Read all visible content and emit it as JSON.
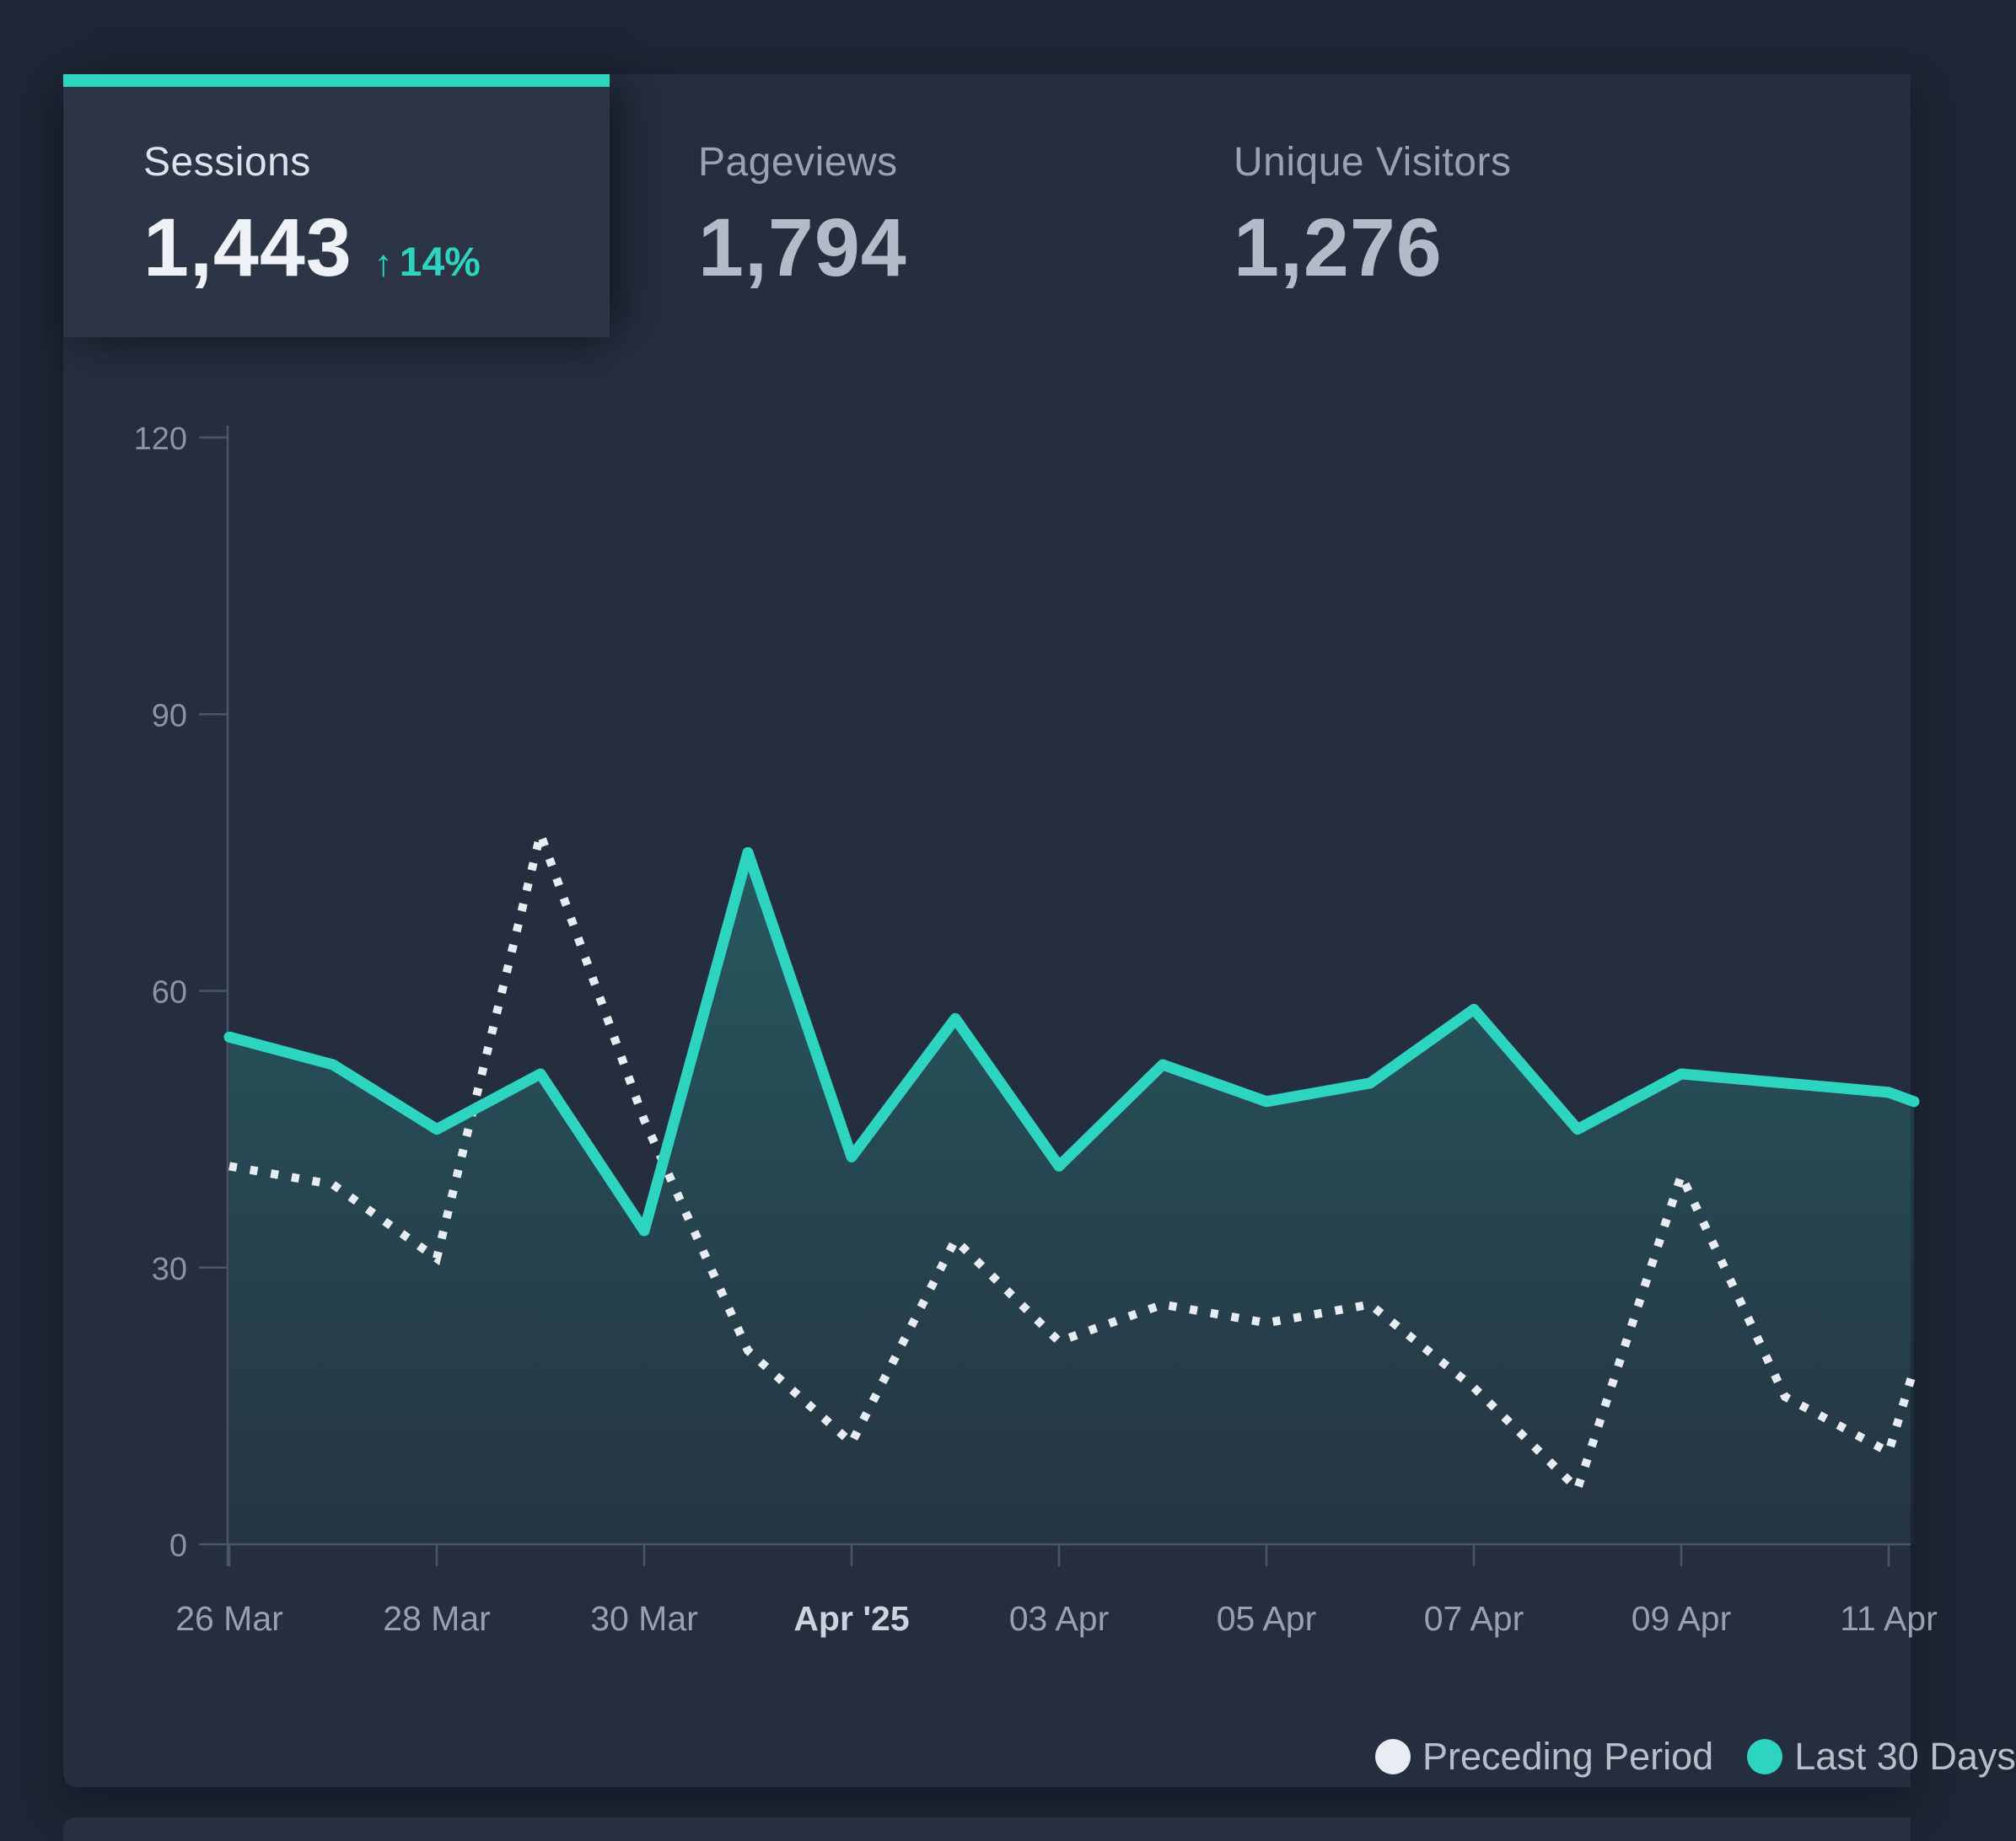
{
  "card": {
    "tabs": [
      {
        "id": "sessions",
        "label": "Sessions",
        "value": "1,443",
        "delta_arrow": "↑",
        "delta": "14%",
        "selected": true
      },
      {
        "id": "pageviews",
        "label": "Pageviews",
        "value": "1,794",
        "selected": false
      },
      {
        "id": "unique-visitors",
        "label": "Unique Visitors",
        "value": "1,276",
        "selected": false
      }
    ],
    "legend": [
      {
        "label": "Preceding Period",
        "color": "#e9edf3"
      },
      {
        "label": "Last 30 Days",
        "color": "#2dd4bf"
      }
    ]
  },
  "colors": {
    "accent_teal": "#2dd4bf",
    "series_white": "#e9edf3",
    "page_bg": "#1e2534",
    "card_bg": "#252e3e",
    "selected_tab_bg": "#2c3546",
    "axis_line": "#4a5568",
    "tick_text": "#8b94a5",
    "x_label": "#98a1b0",
    "x_label_bright": "#ccd3de",
    "delta_text": "#2dd4bf"
  },
  "chart_data": {
    "type": "line",
    "title": "Sessions",
    "x": [
      "26 Mar",
      "27 Mar",
      "28 Mar",
      "29 Mar",
      "30 Mar",
      "31 Mar",
      "01 Apr",
      "02 Apr",
      "03 Apr",
      "04 Apr",
      "05 Apr",
      "06 Apr",
      "07 Apr",
      "08 Apr",
      "09 Apr",
      "10 Apr",
      "11 Apr"
    ],
    "x_tick_labels": [
      "26 Mar",
      "28 Mar",
      "30 Mar",
      "Apr '25",
      "03 Apr",
      "05 Apr",
      "07 Apr",
      "09 Apr",
      "11 Apr"
    ],
    "highlighted_tick": "Apr '25",
    "series": [
      {
        "name": "Last 30 Days",
        "style": "solid",
        "color": "#2dd4bf",
        "fill": true,
        "values": [
          55,
          52,
          45,
          51,
          34,
          75,
          42,
          57,
          41,
          52,
          48,
          50,
          58,
          45,
          51,
          50,
          49
        ],
        "edge_value": 48
      },
      {
        "name": "Preceding Period",
        "style": "dotted",
        "color": "#e9edf3",
        "fill": false,
        "values": [
          41,
          39,
          31,
          77,
          46,
          21,
          11,
          33,
          22,
          26,
          24,
          26,
          17,
          6,
          40,
          16,
          10
        ],
        "edge_value": 19
      }
    ],
    "yticks": [
      0,
      30,
      60,
      90,
      120
    ],
    "ylim": [
      0,
      120
    ],
    "grid": false,
    "legend_position": "bottom-right"
  }
}
